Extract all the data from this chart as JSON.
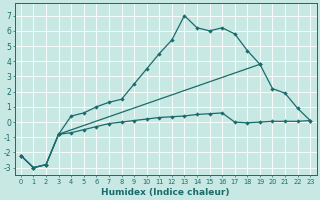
{
  "xlabel": "Humidex (Indice chaleur)",
  "xlim": [
    -0.5,
    23.5
  ],
  "ylim": [
    -3.5,
    7.8
  ],
  "yticks": [
    -3,
    -2,
    -1,
    0,
    1,
    2,
    3,
    4,
    5,
    6,
    7
  ],
  "xticks": [
    0,
    1,
    2,
    3,
    4,
    5,
    6,
    7,
    8,
    9,
    10,
    11,
    12,
    13,
    14,
    15,
    16,
    17,
    18,
    19,
    20,
    21,
    22,
    23
  ],
  "background_color": "#c8e8e4",
  "grid_color": "#ffffff",
  "line_color": "#1a6b6b",
  "line1_x": [
    0,
    1,
    2,
    3,
    4,
    5,
    6,
    7,
    8,
    9,
    10,
    11,
    12,
    13,
    14,
    15,
    16,
    17,
    18,
    19
  ],
  "line1_y": [
    -2.2,
    -3.0,
    -2.8,
    -0.8,
    0.4,
    0.6,
    1.0,
    1.3,
    1.5,
    2.5,
    3.5,
    4.5,
    5.4,
    7.0,
    6.2,
    6.0,
    6.2,
    5.8,
    4.7,
    3.8
  ],
  "line2_x": [
    0,
    1,
    2,
    3,
    19,
    20,
    21,
    22,
    23
  ],
  "line2_y": [
    -2.2,
    -3.0,
    -2.8,
    -0.8,
    3.8,
    2.2,
    1.9,
    0.9,
    0.1
  ],
  "line3_x": [
    0,
    1,
    2,
    3,
    4,
    5,
    6,
    7,
    8,
    9,
    10,
    11,
    12,
    13,
    14,
    15,
    16,
    17,
    18,
    19,
    20,
    21,
    22,
    23
  ],
  "line3_y": [
    -2.2,
    -3.0,
    -2.8,
    -0.8,
    -0.7,
    -0.5,
    -0.3,
    -0.1,
    0.0,
    0.1,
    0.2,
    0.3,
    0.35,
    0.4,
    0.5,
    0.55,
    0.6,
    0.0,
    -0.05,
    -0.0,
    0.05,
    0.05,
    0.05,
    0.1
  ],
  "marker": "D",
  "markersize": 2.2,
  "linewidth": 0.9
}
